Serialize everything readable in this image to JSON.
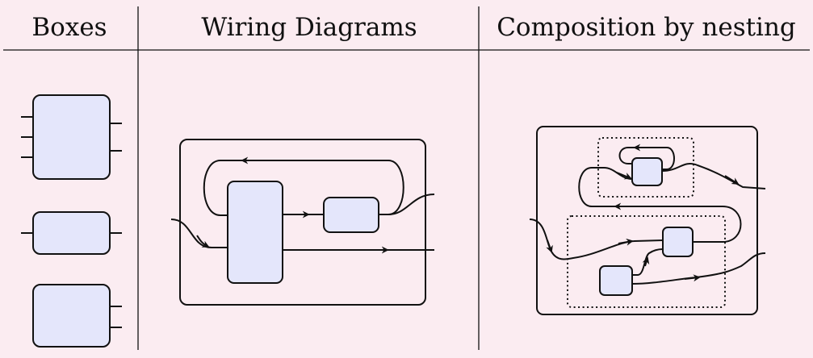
{
  "columns": {
    "boxes": "Boxes",
    "wiring": "Wiring Diagrams",
    "composition": "Composition by nesting"
  },
  "colors": {
    "background": "#fbecf1",
    "box_fill": "#e4e6fb",
    "stroke": "#111111"
  }
}
